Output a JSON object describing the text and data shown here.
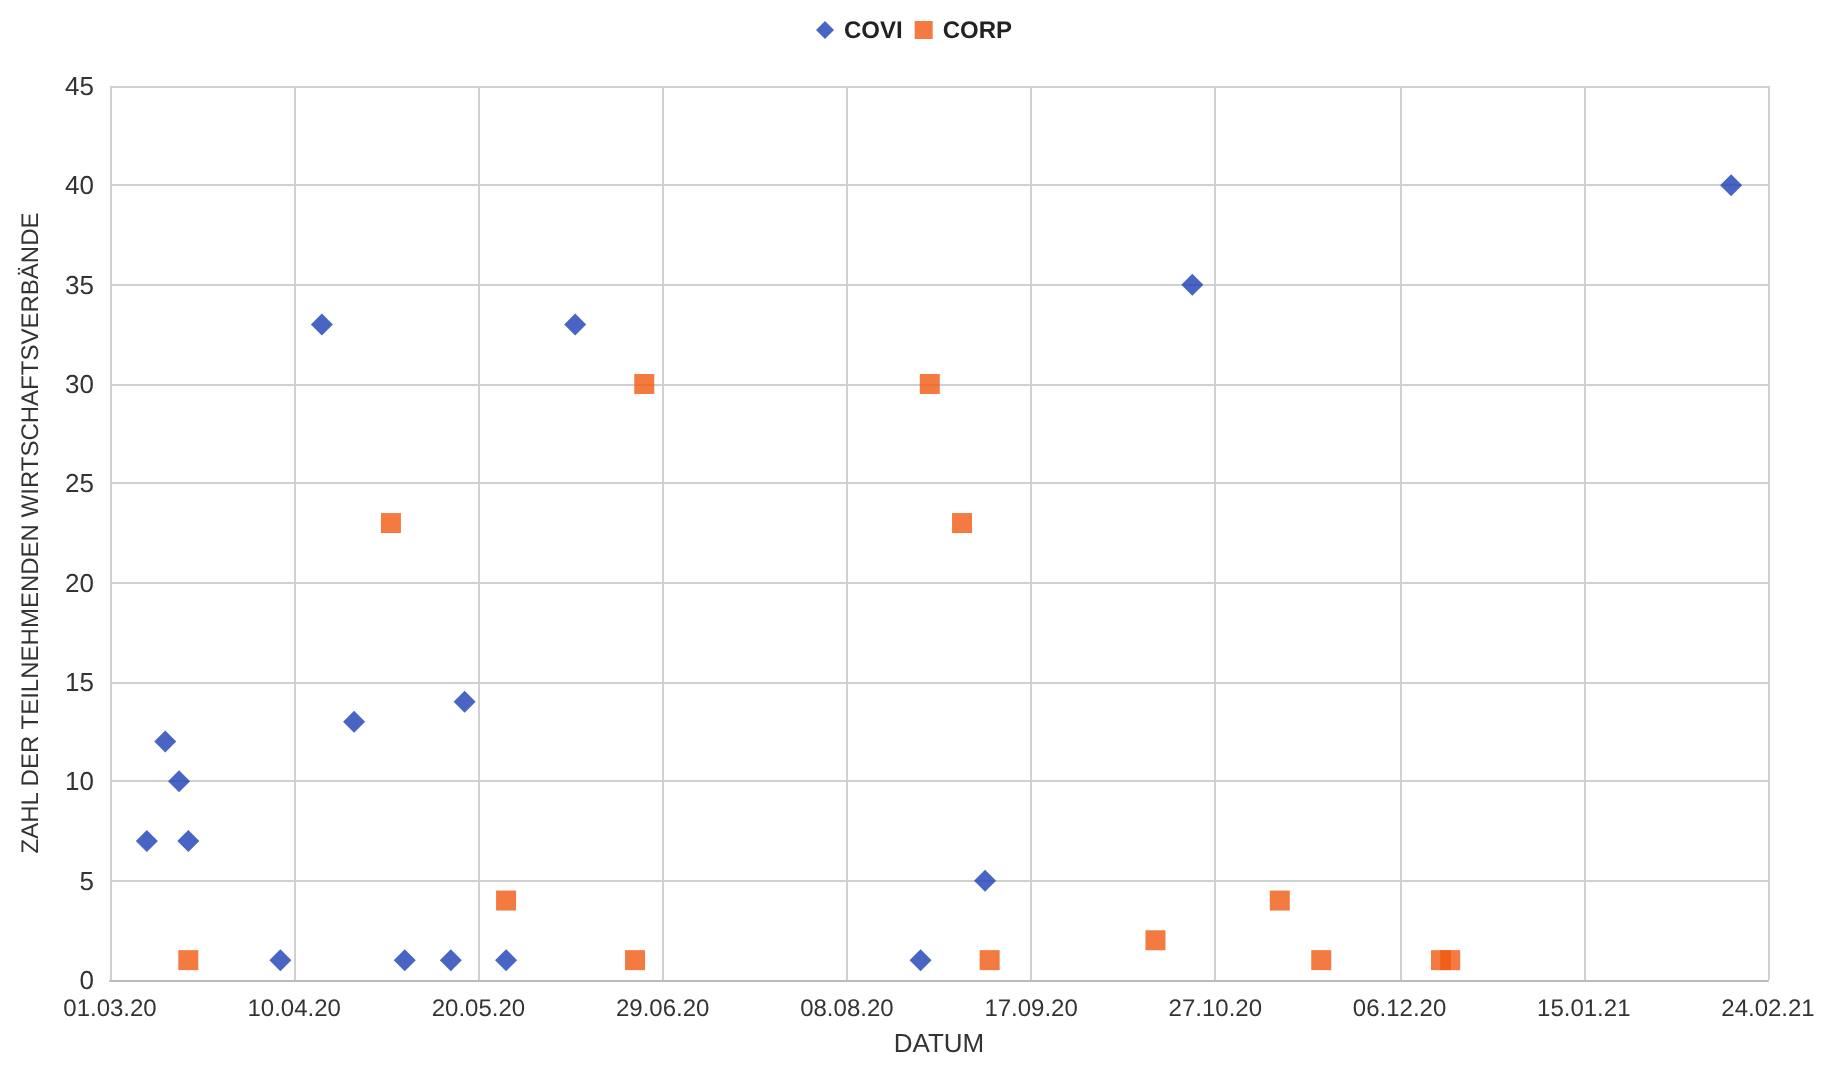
{
  "chart_data": {
    "type": "scatter",
    "xlabel": "DATUM",
    "ylabel": "ZAHL DER TEILNEHMENDEN WIRTSCHAFTSVERBÄNDE",
    "legend": "top",
    "grid": true,
    "xlim": [
      "2020-03-01",
      "2021-02-24"
    ],
    "xticks": [
      {
        "value": "2020-03-01",
        "label": "01.03.20"
      },
      {
        "value": "2020-04-10",
        "label": "10.04.20"
      },
      {
        "value": "2020-05-20",
        "label": "20.05.20"
      },
      {
        "value": "2020-06-29",
        "label": "29.06.20"
      },
      {
        "value": "2020-08-08",
        "label": "08.08.20"
      },
      {
        "value": "2020-09-17",
        "label": "17.09.20"
      },
      {
        "value": "2020-10-27",
        "label": "27.10.20"
      },
      {
        "value": "2020-12-06",
        "label": "06.12.20"
      },
      {
        "value": "2021-01-15",
        "label": "15.01.21"
      },
      {
        "value": "2021-02-24",
        "label": "24.02.21"
      }
    ],
    "ylim": [
      0,
      45
    ],
    "yticks": [
      0,
      5,
      10,
      15,
      20,
      25,
      30,
      35,
      40,
      45
    ],
    "series": [
      {
        "name": "COVI",
        "color": "#1a3fb5",
        "marker": "diamond",
        "x": [
          "2020-03-09",
          "2020-03-13",
          "2020-03-16",
          "2020-03-18",
          "2020-04-07",
          "2020-04-16",
          "2020-04-23",
          "2020-05-04",
          "2020-05-14",
          "2020-05-17",
          "2020-05-26",
          "2020-06-10",
          "2020-08-24",
          "2020-09-07",
          "2020-10-22",
          "2021-02-16"
        ],
        "values": [
          7,
          12,
          10,
          7,
          1,
          33,
          13,
          1,
          1,
          14,
          1,
          33,
          1,
          5,
          35,
          40
        ]
      },
      {
        "name": "CORP",
        "color": "#f05a12",
        "marker": "square",
        "x": [
          "2020-03-18",
          "2020-05-01",
          "2020-05-26",
          "2020-06-23",
          "2020-06-25",
          "2020-08-26",
          "2020-09-02",
          "2020-09-08",
          "2020-10-14",
          "2020-11-10",
          "2020-11-19",
          "2020-12-15",
          "2020-12-17"
        ],
        "values": [
          1,
          23,
          4,
          1,
          30,
          30,
          23,
          1,
          2,
          4,
          1,
          1,
          1
        ]
      }
    ]
  }
}
